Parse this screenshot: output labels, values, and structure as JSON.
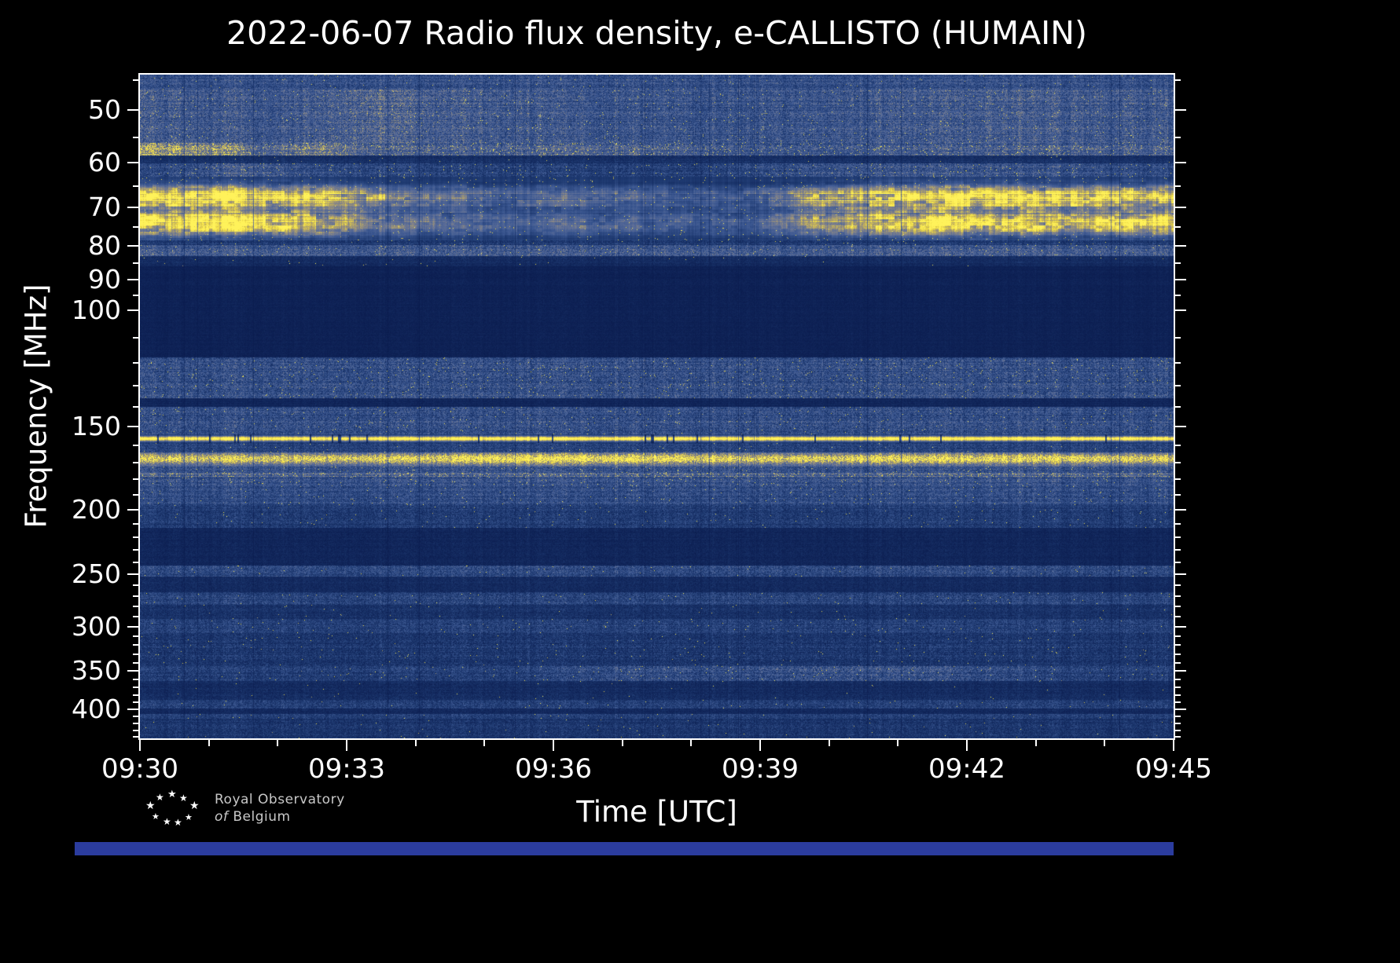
{
  "chart_data": {
    "type": "heatmap",
    "subtype": "radio-spectrogram",
    "title": "2022-06-07 Radio flux density, e-CALLISTO (HUMAIN)",
    "date": "2022-06-07",
    "instrument": "e-CALLISTO",
    "station": "HUMAIN",
    "xlabel": "Time [UTC]",
    "ylabel": "Frequency [MHz]",
    "x_ticks": [
      "09:30",
      "09:33",
      "09:36",
      "09:39",
      "09:42",
      "09:45"
    ],
    "x_range_minutes": [
      0,
      15
    ],
    "x_minor_step_minutes": 1,
    "y_scale": "log",
    "y_axis_inverted": true,
    "y_ticks": [
      50,
      60,
      70,
      80,
      90,
      100,
      150,
      200,
      250,
      300,
      350,
      400
    ],
    "y_minor_ticks": [
      45,
      55,
      65,
      75,
      85,
      95,
      110,
      120,
      130,
      140,
      160,
      170,
      180,
      190,
      210,
      220,
      230,
      240,
      260,
      270,
      280,
      290,
      310,
      320,
      330,
      340,
      360,
      370,
      380,
      390,
      410,
      420,
      430,
      440
    ],
    "freq_range_mhz": [
      44.2,
      442
    ],
    "grid": false,
    "legend": "none",
    "colormap": {
      "name": "blue-yellow (cividis-like)",
      "stops": [
        [
          0.0,
          [
            8,
            24,
            74
          ]
        ],
        [
          0.18,
          [
            28,
            55,
            110
          ]
        ],
        [
          0.35,
          [
            60,
            88,
            146
          ]
        ],
        [
          0.5,
          [
            96,
            112,
            152
          ]
        ],
        [
          0.65,
          [
            146,
            140,
            128
          ]
        ],
        [
          0.78,
          [
            196,
            178,
            92
          ]
        ],
        [
          0.88,
          [
            236,
            216,
            68
          ]
        ],
        [
          1.0,
          [
            255,
            242,
            90
          ]
        ]
      ]
    },
    "bands": [
      {
        "f": [
          44.2,
          46.6
        ],
        "base": 0.26,
        "noise": 0.26,
        "speckle": 0.004
      },
      {
        "f": [
          46.6,
          56.0
        ],
        "base": 0.3,
        "noise": 0.32,
        "speckle": 0.008,
        "env": [
          [
            0,
            1.05
          ],
          [
            2,
            0.95
          ],
          [
            3.3,
            1.25
          ],
          [
            4.4,
            1.05
          ],
          [
            6,
            0.95
          ],
          [
            8.5,
            0.9
          ],
          [
            11,
            1.0
          ],
          [
            13,
            1.05
          ],
          [
            15,
            1.0
          ]
        ]
      },
      {
        "f": [
          56.0,
          58.6
        ],
        "base": 0.36,
        "noise": 0.36,
        "speckle": 0.04,
        "env": [
          [
            0,
            1.6
          ],
          [
            1.2,
            1.45
          ],
          [
            1.8,
            0.95
          ],
          [
            2.6,
            1.3
          ],
          [
            3.4,
            1.0
          ],
          [
            5,
            0.9
          ],
          [
            6.5,
            1.0
          ],
          [
            9,
            0.8
          ],
          [
            12,
            0.9
          ],
          [
            15,
            0.95
          ]
        ]
      },
      {
        "f": [
          58.6,
          60.2
        ],
        "base": 0.12,
        "noise": 0.12,
        "speckle": 0.002
      },
      {
        "f": [
          60.2,
          63.0
        ],
        "base": 0.25,
        "noise": 0.28,
        "speckle": 0.012,
        "env": [
          [
            0,
            0.85
          ],
          [
            1.5,
            1.35
          ],
          [
            2.3,
            1.05
          ],
          [
            5,
            0.8
          ],
          [
            8,
            0.75
          ],
          [
            9.6,
            1.1
          ],
          [
            11.5,
            1.2
          ],
          [
            13.5,
            1.1
          ],
          [
            15,
            0.95
          ]
        ]
      },
      {
        "f": [
          63.0,
          78.6
        ],
        "type": "burst",
        "peaks": [
          {
            "c": 67.5,
            "w": 2.6,
            "a": 1.0
          },
          {
            "c": 74.0,
            "w": 3.2,
            "a": 0.95
          }
        ],
        "env": [
          [
            0,
            1.0
          ],
          [
            0.9,
            1.05
          ],
          [
            1.9,
            1.0
          ],
          [
            2.8,
            0.88
          ],
          [
            3.4,
            0.62
          ],
          [
            4.1,
            0.45
          ],
          [
            5.2,
            0.36
          ],
          [
            6.3,
            0.4
          ],
          [
            7.6,
            0.32
          ],
          [
            8.8,
            0.3
          ],
          [
            9.3,
            0.45
          ],
          [
            9.9,
            0.75
          ],
          [
            10.7,
            0.9
          ],
          [
            11.5,
            0.97
          ],
          [
            12.2,
            1.02
          ],
          [
            13.0,
            0.95
          ],
          [
            13.7,
            0.88
          ],
          [
            14.4,
            0.92
          ],
          [
            15,
            0.97
          ]
        ]
      },
      {
        "f": [
          78.6,
          79.8
        ],
        "base": 0.16,
        "noise": 0.18,
        "speckle": 0.004
      },
      {
        "f": [
          79.8,
          83.0
        ],
        "base": 0.32,
        "noise": 0.32,
        "speckle": 0.01
      },
      {
        "f": [
          83.0,
          86.0
        ],
        "base": 0.1,
        "noise": 0.1,
        "speckle": 0.002
      },
      {
        "f": [
          86.0,
          118.0
        ],
        "base": 0.05,
        "noise": 0.05,
        "speckle": 0
      },
      {
        "f": [
          118.0,
          136.0
        ],
        "base": 0.26,
        "noise": 0.3,
        "speckle": 0.01
      },
      {
        "f": [
          136.0,
          140.0
        ],
        "base": 0.07,
        "noise": 0.07,
        "speckle": 0
      },
      {
        "f": [
          140.0,
          154.0
        ],
        "base": 0.26,
        "noise": 0.3,
        "speckle": 0.006
      },
      {
        "f": [
          154.0,
          158.6
        ],
        "type": "carrier",
        "center": 156.3,
        "width": 1.35,
        "gap_prob": 0.05
      },
      {
        "f": [
          158.6,
          164.0
        ],
        "base": 0.2,
        "noise": 0.22,
        "speckle": 0.004
      },
      {
        "f": [
          164.0,
          172.0
        ],
        "type": "hotband",
        "center": 167.6,
        "width": 2.6,
        "env": [
          [
            0,
            0.9
          ],
          [
            4,
            0.95
          ],
          [
            5.5,
            1.1
          ],
          [
            7.5,
            1.05
          ],
          [
            9,
            0.9
          ],
          [
            11.5,
            1.0
          ],
          [
            15,
            0.92
          ]
        ]
      },
      {
        "f": [
          172.0,
          176.0
        ],
        "base": 0.27,
        "noise": 0.28,
        "speckle": 0.012
      },
      {
        "f": [
          176.0,
          178.6
        ],
        "base": 0.38,
        "noise": 0.34,
        "speckle": 0.05
      },
      {
        "f": [
          178.6,
          184.0
        ],
        "base": 0.28,
        "noise": 0.28,
        "speckle": 0.012
      },
      {
        "f": [
          184.0,
          196.0
        ],
        "base": 0.25,
        "noise": 0.26,
        "speckle": 0.005
      },
      {
        "f": [
          196.0,
          213.0
        ],
        "base": 0.17,
        "noise": 0.2,
        "speckle": 0.003
      },
      {
        "f": [
          213.0,
          243.0
        ],
        "base": 0.07,
        "noise": 0.08,
        "speckle": 0
      },
      {
        "f": [
          243.0,
          252.0
        ],
        "base": 0.23,
        "noise": 0.26,
        "speckle": 0.004
      },
      {
        "f": [
          252.0,
          266.0
        ],
        "base": 0.09,
        "noise": 0.1,
        "speckle": 0
      },
      {
        "f": [
          266.0,
          278.0
        ],
        "base": 0.21,
        "noise": 0.24,
        "speckle": 0.004
      },
      {
        "f": [
          278.0,
          292.0
        ],
        "base": 0.13,
        "noise": 0.16,
        "speckle": 0.002
      },
      {
        "f": [
          292.0,
          306.0
        ],
        "base": 0.19,
        "noise": 0.22,
        "speckle": 0.005
      },
      {
        "f": [
          306.0,
          344.0
        ],
        "base": 0.15,
        "noise": 0.2,
        "speckle": 0.003
      },
      {
        "f": [
          344.0,
          362.0
        ],
        "base": 0.21,
        "noise": 0.26,
        "speckle": 0.005,
        "env": [
          [
            0,
            0.85
          ],
          [
            5.5,
            0.9
          ],
          [
            7,
            1.25
          ],
          [
            8.5,
            1.15
          ],
          [
            10,
            1.35
          ],
          [
            11.5,
            1.3
          ],
          [
            12.5,
            1.1
          ],
          [
            13.5,
            0.95
          ],
          [
            15,
            0.9
          ]
        ]
      },
      {
        "f": [
          362.0,
          387.0
        ],
        "base": 0.1,
        "noise": 0.12,
        "speckle": 0.001
      },
      {
        "f": [
          387.0,
          398.0
        ],
        "base": 0.19,
        "noise": 0.22,
        "speckle": 0.003
      },
      {
        "f": [
          398.0,
          406.0
        ],
        "base": 0.08,
        "noise": 0.09,
        "speckle": 0
      },
      {
        "f": [
          406.0,
          413.0
        ],
        "base": 0.21,
        "noise": 0.22,
        "speckle": 0.003
      },
      {
        "f": [
          413.0,
          442.0
        ],
        "base": 0.14,
        "noise": 0.18,
        "speckle": 0.002
      }
    ]
  },
  "branding": {
    "line1": "Royal Observatory",
    "line2_italic": "of",
    "line2_rest": "Belgium"
  },
  "icons": {
    "star": "★"
  },
  "colors": {
    "background": "#000000",
    "axes": "#ffffff",
    "footer_bar": "#2b3c9e",
    "logo_text": "#c8c8c8"
  }
}
